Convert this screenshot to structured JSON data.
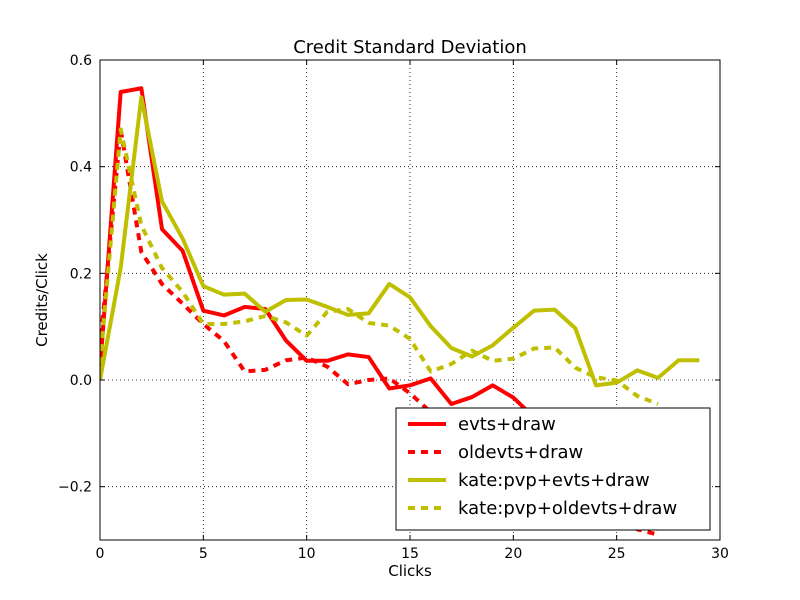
{
  "chart_data": {
    "type": "line",
    "title": "Credit Standard Deviation",
    "xlabel": "Clicks",
    "ylabel": "Credits/Click",
    "xlim": [
      0,
      30
    ],
    "ylim": [
      -0.3,
      0.6
    ],
    "xticks": [
      0,
      5,
      10,
      15,
      20,
      25,
      30
    ],
    "yticks": [
      -0.2,
      0.0,
      0.2,
      0.4,
      0.6
    ],
    "ytick_labels": [
      "−0.2",
      "0.0",
      "0.2",
      "0.4",
      "0.6"
    ],
    "grid": true,
    "legend_position": "lower-right",
    "series": [
      {
        "name": "evts+draw",
        "color": "#ff0000",
        "style": "solid",
        "x": [
          0,
          1,
          2,
          3,
          4,
          5,
          6,
          7,
          8,
          9,
          10,
          11,
          12,
          13,
          14,
          15,
          16,
          17,
          18,
          19,
          20,
          21,
          22,
          23,
          24,
          25,
          26,
          27
        ],
        "y": [
          0.02,
          0.54,
          0.547,
          0.283,
          0.242,
          0.13,
          0.121,
          0.137,
          0.133,
          0.074,
          0.036,
          0.036,
          0.048,
          0.043,
          -0.016,
          -0.01,
          0.003,
          -0.045,
          -0.032,
          -0.01,
          -0.033,
          -0.07,
          -0.09,
          -0.12,
          -0.16,
          -0.2,
          -0.25,
          -0.28
        ]
      },
      {
        "name": "oldevts+draw",
        "color": "#ff0000",
        "style": "dashed",
        "x": [
          0,
          1,
          2,
          3,
          4,
          5,
          6,
          7,
          8,
          9,
          10,
          11,
          12,
          13,
          14,
          15,
          16,
          17,
          18,
          19,
          20,
          21,
          22,
          23,
          24,
          25,
          26,
          27
        ],
        "y": [
          0.06,
          0.47,
          0.24,
          0.18,
          0.143,
          0.105,
          0.073,
          0.016,
          0.019,
          0.037,
          0.042,
          0.025,
          -0.008,
          0.0,
          0.003,
          -0.025,
          -0.06,
          -0.075,
          -0.095,
          -0.11,
          -0.13,
          -0.15,
          -0.17,
          -0.19,
          -0.22,
          -0.25,
          -0.28,
          -0.29
        ]
      },
      {
        "name": "kate:pvp+evts+draw",
        "color": "#bfbf00",
        "style": "solid",
        "x": [
          0,
          1,
          2,
          3,
          4,
          5,
          6,
          7,
          8,
          9,
          10,
          11,
          12,
          13,
          14,
          15,
          16,
          17,
          18,
          19,
          20,
          21,
          22,
          23,
          24,
          25,
          26,
          27,
          28,
          29
        ],
        "y": [
          0.0,
          0.21,
          0.53,
          0.335,
          0.265,
          0.176,
          0.16,
          0.162,
          0.128,
          0.15,
          0.151,
          0.137,
          0.122,
          0.125,
          0.18,
          0.155,
          0.101,
          0.06,
          0.044,
          0.065,
          0.098,
          0.13,
          0.132,
          0.097,
          -0.01,
          -0.005,
          0.018,
          0.004,
          0.037,
          0.037
        ]
      },
      {
        "name": "kate:pvp+oldevts+draw",
        "color": "#bfbf00",
        "style": "dashed",
        "x": [
          0,
          1,
          2,
          3,
          4,
          5,
          6,
          7,
          8,
          9,
          10,
          11,
          12,
          13,
          14,
          15,
          16,
          17,
          18,
          19,
          20,
          21,
          22,
          23,
          24,
          25,
          26,
          27
        ],
        "y": [
          0.03,
          0.47,
          0.29,
          0.21,
          0.165,
          0.105,
          0.105,
          0.11,
          0.12,
          0.108,
          0.083,
          0.128,
          0.133,
          0.107,
          0.102,
          0.077,
          0.016,
          0.03,
          0.055,
          0.036,
          0.04,
          0.059,
          0.061,
          0.023,
          0.005,
          -0.001,
          -0.03,
          -0.045
        ]
      }
    ]
  }
}
